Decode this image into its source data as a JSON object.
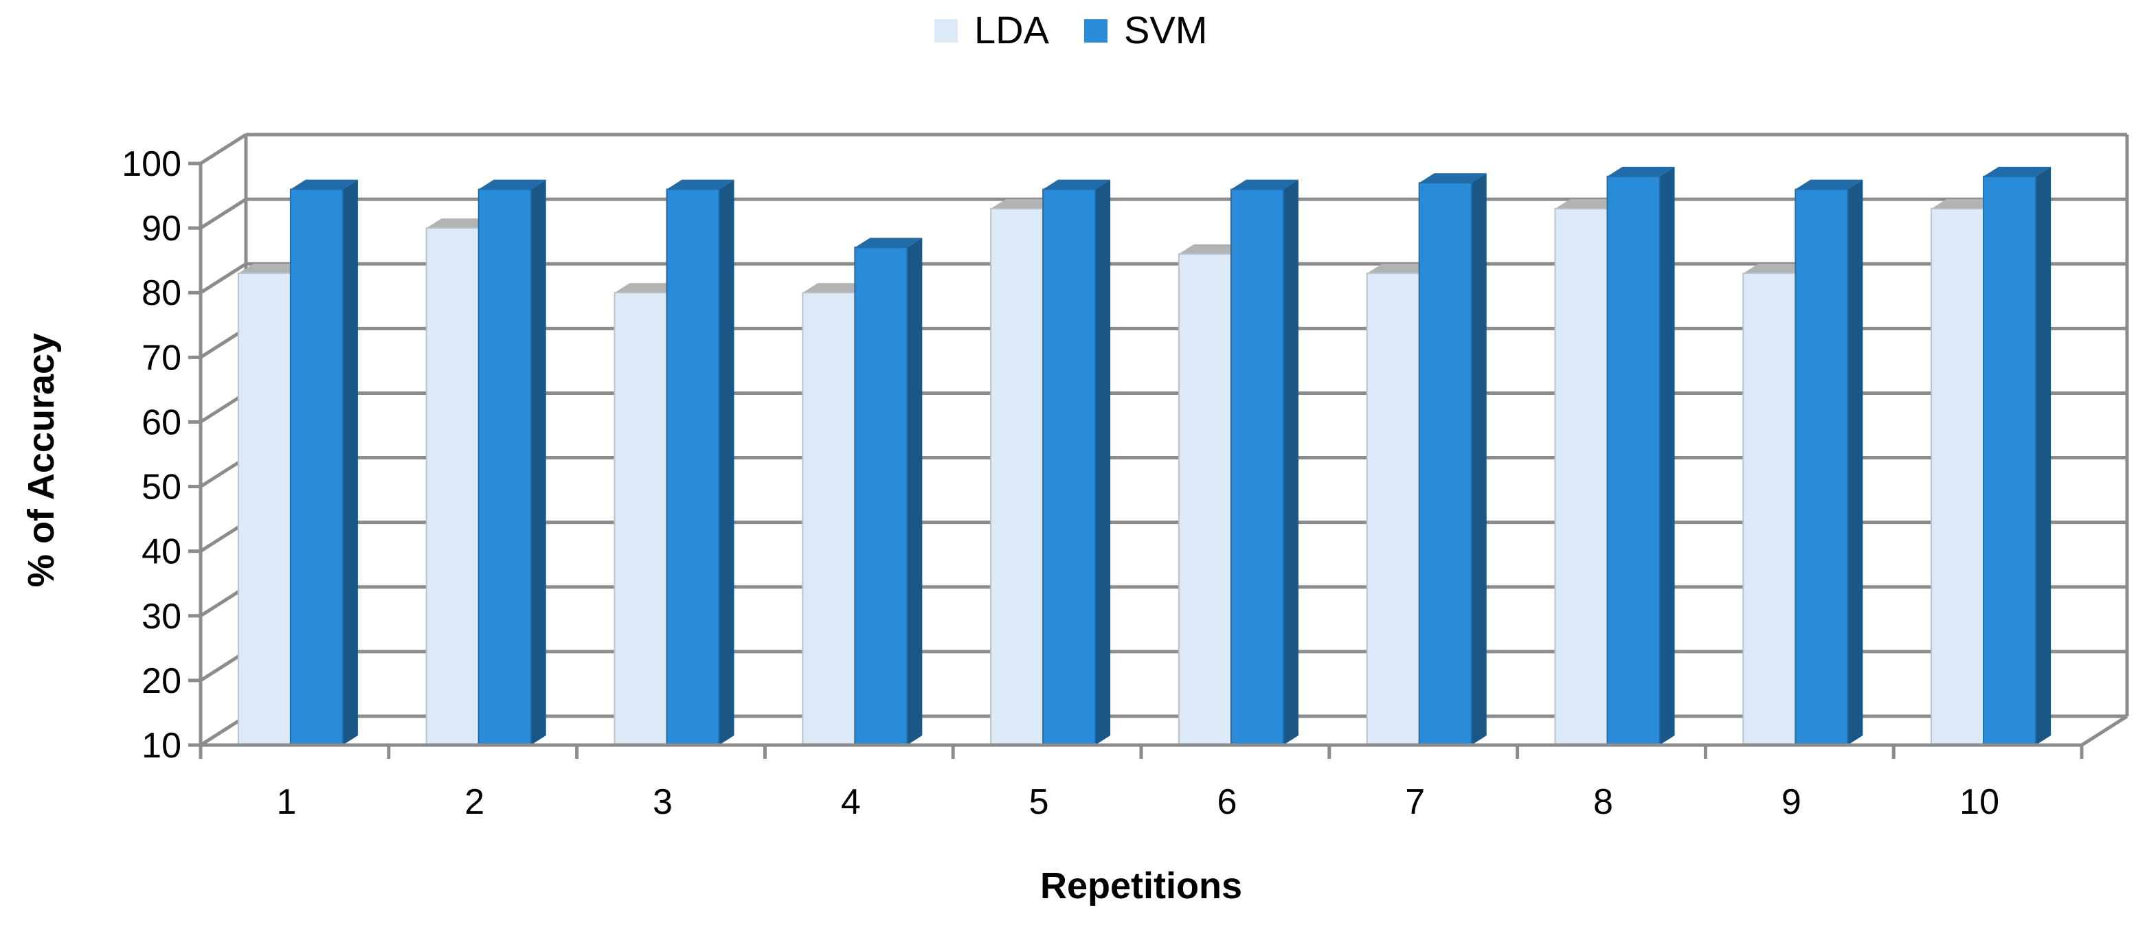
{
  "chart_data": {
    "type": "bar",
    "categories": [
      "1",
      "2",
      "3",
      "4",
      "5",
      "6",
      "7",
      "8",
      "9",
      "10"
    ],
    "series": [
      {
        "name": "LDA",
        "values": [
          83,
          90,
          80,
          80,
          93,
          86,
          83,
          93,
          83,
          93
        ],
        "color": "#dce9f6"
      },
      {
        "name": "SVM",
        "values": [
          96,
          96,
          96,
          87,
          96,
          96,
          97,
          98,
          96,
          98
        ],
        "color": "#2a8bd8"
      }
    ],
    "xlabel": "Repetitions",
    "ylabel": "% of Accuracy",
    "ylim": [
      10,
      100
    ],
    "yticks": [
      "10",
      "20",
      "30",
      "40",
      "50",
      "60",
      "70",
      "80",
      "90",
      "100"
    ],
    "grid": true,
    "legend_position": "top-center",
    "style": "3d-clustered"
  }
}
